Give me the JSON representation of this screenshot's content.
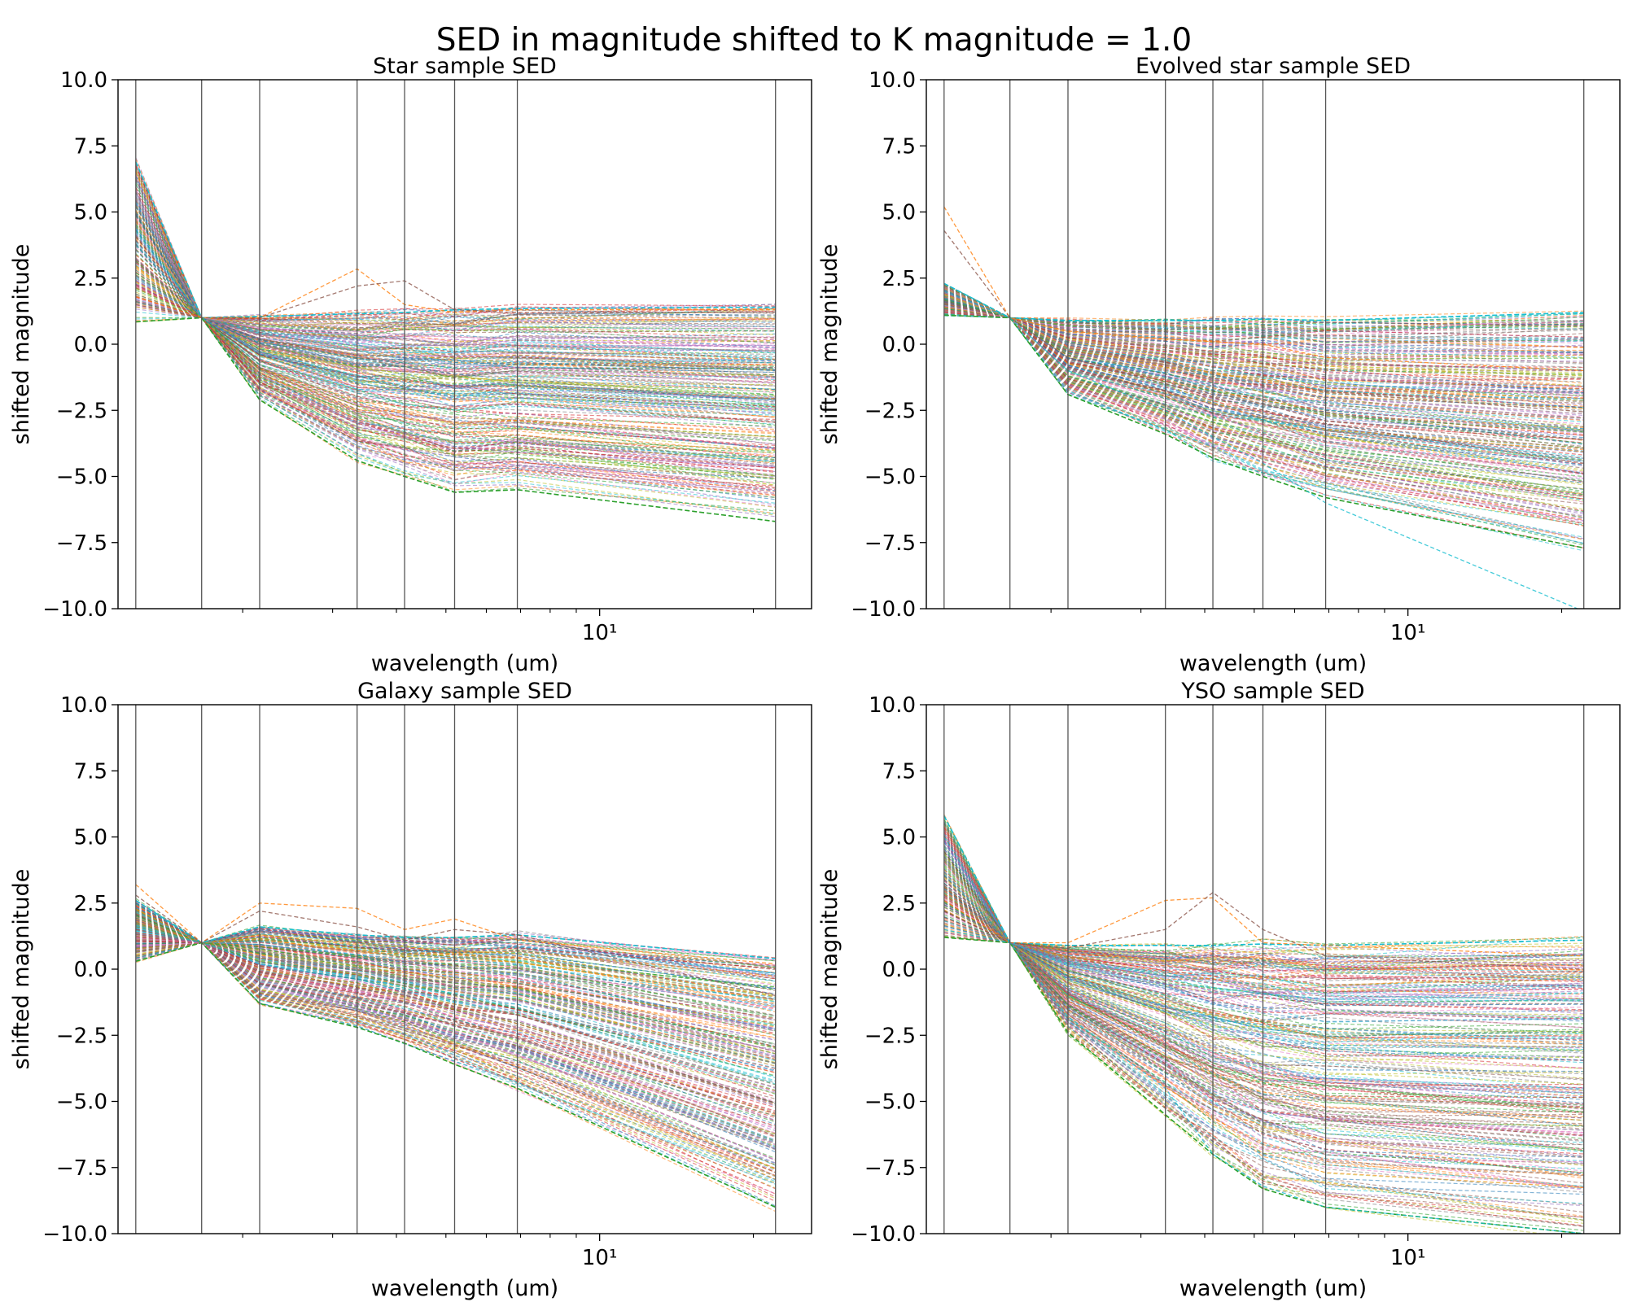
{
  "suptitle": "SED in magnitude shifted to K magnitude = 1.0",
  "chart_data": [
    {
      "type": "line",
      "title": "Star sample SED",
      "xlabel": "wavelength (um)",
      "ylabel": "shifted magnitude",
      "xscale": "log",
      "xlim": [
        1.14,
        26.0
      ],
      "ylim": [
        -10.0,
        10.0
      ],
      "y_ticks": [
        10.0,
        7.5,
        5.0,
        2.5,
        0.0,
        -2.5,
        -5.0,
        -7.5,
        -10.0
      ],
      "y_tick_labels": [
        "10.0",
        "7.5",
        "5.0",
        "2.5",
        "0.0",
        "−2.5",
        "−5.0",
        "−7.5",
        "−10.0"
      ],
      "x_major_tick": 10,
      "x_major_tick_label": "10¹",
      "x_minor_ticks": [
        2,
        3,
        4,
        5,
        6,
        7,
        8,
        9,
        20
      ],
      "band_wavelengths": [
        1.235,
        1.662,
        2.159,
        3.35,
        4.15,
        5.2,
        6.9,
        22.1
      ],
      "line_style": "dashed",
      "series_count_note": "many individual SED curves",
      "envelope": {
        "upper": [
          6.9,
          1.0,
          1.05,
          1.15,
          1.2,
          1.3,
          1.35,
          1.4
        ],
        "lower": [
          0.85,
          1.0,
          -2.1,
          -4.4,
          -5.0,
          -5.6,
          -5.5,
          -6.7
        ]
      },
      "outliers": [
        [
          1.8,
          1.0,
          1.0,
          2.85,
          1.5,
          1.2,
          1.3,
          1.3
        ],
        [
          1.5,
          1.0,
          1.0,
          2.2,
          2.4,
          1.3,
          1.2,
          1.2
        ]
      ]
    },
    {
      "type": "line",
      "title": "Evolved star sample SED",
      "xlabel": "wavelength (um)",
      "ylabel": "shifted magnitude",
      "xscale": "log",
      "xlim": [
        1.14,
        26.0
      ],
      "ylim": [
        -10.0,
        10.0
      ],
      "y_ticks": [
        10.0,
        7.5,
        5.0,
        2.5,
        0.0,
        -2.5,
        -5.0,
        -7.5,
        -10.0
      ],
      "y_tick_labels": [
        "10.0",
        "7.5",
        "5.0",
        "2.5",
        "0.0",
        "−2.5",
        "−5.0",
        "−7.5",
        "−10.0"
      ],
      "x_major_tick": 10,
      "x_major_tick_label": "10¹",
      "x_minor_ticks": [
        2,
        3,
        4,
        5,
        6,
        7,
        8,
        9,
        20
      ],
      "band_wavelengths": [
        1.235,
        1.662,
        2.159,
        3.35,
        4.15,
        5.2,
        6.9,
        22.1
      ],
      "line_style": "dashed",
      "envelope": {
        "upper": [
          2.3,
          1.0,
          0.9,
          0.9,
          0.9,
          0.95,
          0.9,
          1.2
        ],
        "lower": [
          1.1,
          1.0,
          -1.9,
          -3.4,
          -4.3,
          -5.0,
          -5.8,
          -7.7
        ]
      },
      "outliers": [
        [
          5.2,
          1.0,
          0.5,
          0.2,
          0.1,
          0.0,
          -0.5,
          -1.0
        ],
        [
          4.3,
          1.0,
          -0.5,
          -1.5,
          -2.0,
          -2.5,
          -3.0,
          -4.5
        ],
        [
          2.0,
          1.0,
          -1.0,
          -2.5,
          -3.5,
          -4.5,
          -6.0,
          -10.1
        ]
      ]
    },
    {
      "type": "line",
      "title": "Galaxy sample SED",
      "xlabel": "wavelength (um)",
      "ylabel": "shifted magnitude",
      "xscale": "log",
      "xlim": [
        1.14,
        26.0
      ],
      "ylim": [
        -10.0,
        10.0
      ],
      "y_ticks": [
        10.0,
        7.5,
        5.0,
        2.5,
        0.0,
        -2.5,
        -5.0,
        -7.5,
        -10.0
      ],
      "y_tick_labels": [
        "10.0",
        "7.5",
        "5.0",
        "2.5",
        "0.0",
        "−2.5",
        "−5.0",
        "−7.5",
        "−10.0"
      ],
      "x_major_tick": 10,
      "x_major_tick_label": "10¹",
      "x_minor_ticks": [
        2,
        3,
        4,
        5,
        6,
        7,
        8,
        9,
        20
      ],
      "band_wavelengths": [
        1.235,
        1.662,
        2.159,
        3.35,
        4.15,
        5.2,
        6.9,
        22.1
      ],
      "line_style": "dashed",
      "envelope": {
        "upper": [
          2.6,
          1.0,
          1.6,
          1.3,
          1.2,
          1.2,
          1.3,
          0.4
        ],
        "lower": [
          0.3,
          1.0,
          -1.3,
          -2.2,
          -2.8,
          -3.6,
          -4.5,
          -9.0
        ]
      },
      "outliers": [
        [
          3.2,
          1.0,
          2.5,
          2.3,
          1.5,
          1.9,
          1.1,
          0.2
        ],
        [
          2.8,
          1.0,
          2.2,
          1.6,
          1.1,
          1.5,
          1.3,
          -1.0
        ]
      ]
    },
    {
      "type": "line",
      "title": "YSO sample SED",
      "xlabel": "wavelength (um)",
      "ylabel": "shifted magnitude",
      "xscale": "log",
      "xlim": [
        1.14,
        26.0
      ],
      "ylim": [
        -10.0,
        10.0
      ],
      "y_ticks": [
        10.0,
        7.5,
        5.0,
        2.5,
        0.0,
        -2.5,
        -5.0,
        -7.5,
        -10.0
      ],
      "y_tick_labels": [
        "10.0",
        "7.5",
        "5.0",
        "2.5",
        "0.0",
        "−2.5",
        "−5.0",
        "−7.5",
        "−10.0"
      ],
      "x_major_tick": 10,
      "x_major_tick_label": "10¹",
      "x_minor_ticks": [
        2,
        3,
        4,
        5,
        6,
        7,
        8,
        9,
        20
      ],
      "band_wavelengths": [
        1.235,
        1.662,
        2.159,
        3.35,
        4.15,
        5.2,
        6.9,
        22.1
      ],
      "line_style": "dashed",
      "envelope": {
        "upper": [
          5.8,
          1.0,
          0.9,
          0.9,
          0.9,
          0.95,
          0.9,
          1.1
        ],
        "lower": [
          1.2,
          1.0,
          -2.4,
          -5.5,
          -7.0,
          -8.3,
          -9.0,
          -10.0
        ]
      },
      "outliers": [
        [
          2.6,
          1.0,
          1.0,
          2.6,
          2.7,
          1.0,
          0.9,
          0.5
        ],
        [
          2.2,
          1.0,
          0.8,
          1.5,
          2.9,
          1.5,
          0.5,
          0.0
        ],
        [
          1.5,
          1.0,
          -1.8,
          -4.5,
          -7.0,
          -8.2,
          -9.0,
          -10.0
        ]
      ]
    }
  ],
  "colors": {
    "palette": [
      "#1f77b4",
      "#ff7f0e",
      "#2ca02c",
      "#d62728",
      "#9467bd",
      "#8c564b",
      "#e377c2",
      "#7f7f7f",
      "#bcbd22",
      "#17becf"
    ],
    "band_line": "#555555",
    "axis": "#000000",
    "background": "#ffffff"
  }
}
